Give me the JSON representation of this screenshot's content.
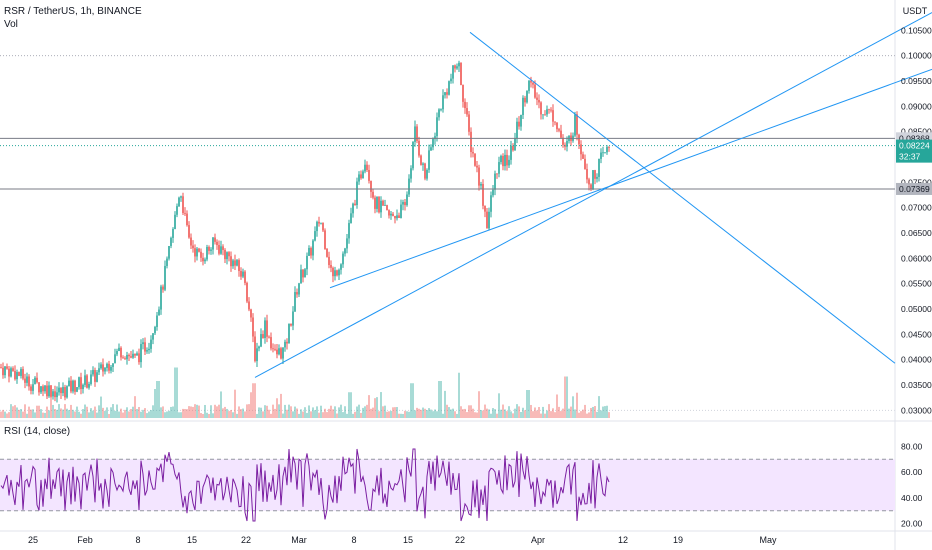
{
  "header": {
    "symbol": "RSR / TetherUS, 1h, BINANCE",
    "volume_label": "Vol"
  },
  "rsi": {
    "label": "RSI (14, close)",
    "levels": [
      "80.00",
      "60.00",
      "40.00",
      "20.00"
    ]
  },
  "price_axis": {
    "currency": "USDT",
    "ticks": [
      "0.10500",
      "0.10000",
      "0.09500",
      "0.09000",
      "0.08500",
      "0.07500",
      "0.07000",
      "0.06500",
      "0.06000",
      "0.05500",
      "0.05000",
      "0.04500",
      "0.04000",
      "0.03500",
      "0.03000"
    ],
    "badges": [
      {
        "value": "0.08368",
        "kind": "level",
        "color": "#d1d4dc",
        "text_color": "#131722"
      },
      {
        "value": "0.08224",
        "kind": "last",
        "color": "#26a69a",
        "text_color": "#ffffff"
      },
      {
        "value": "32:37",
        "kind": "countdown",
        "color": "#26a69a",
        "text_color": "#ffffff"
      },
      {
        "value": "0.07369",
        "kind": "level",
        "color": "#b2b5be",
        "text_color": "#131722"
      }
    ]
  },
  "time_axis": {
    "ticks": [
      "25",
      "Feb",
      "8",
      "15",
      "22",
      "Mar",
      "8",
      "15",
      "22",
      "Apr",
      "12",
      "19",
      "May"
    ]
  },
  "colors": {
    "up": "#26a69a",
    "down": "#ef5350",
    "trendline": "#2196f3",
    "rsi_line": "#7b1fa2",
    "rsi_band": "#f3e5ff"
  },
  "chart_data": {
    "type": "candlestick",
    "ylim": [
      0.0285,
      0.109
    ],
    "horizontal_levels": [
      0.08368,
      0.07369,
      0.1
    ],
    "rsi_ylim": [
      15,
      85
    ],
    "rsi_band": [
      30,
      70
    ],
    "price_path": [
      {
        "t": 0,
        "p": 0.0385
      },
      {
        "t": 15,
        "p": 0.0375
      },
      {
        "t": 30,
        "p": 0.0355
      },
      {
        "t": 45,
        "p": 0.0345
      },
      {
        "t": 60,
        "p": 0.0335
      },
      {
        "t": 75,
        "p": 0.035
      },
      {
        "t": 90,
        "p": 0.036
      },
      {
        "t": 105,
        "p": 0.0385
      },
      {
        "t": 120,
        "p": 0.042
      },
      {
        "t": 135,
        "p": 0.04
      },
      {
        "t": 150,
        "p": 0.044
      },
      {
        "t": 160,
        "p": 0.052
      },
      {
        "t": 170,
        "p": 0.062
      },
      {
        "t": 180,
        "p": 0.074
      },
      {
        "t": 188,
        "p": 0.064
      },
      {
        "t": 200,
        "p": 0.06
      },
      {
        "t": 215,
        "p": 0.063
      },
      {
        "t": 230,
        "p": 0.06
      },
      {
        "t": 245,
        "p": 0.056
      },
      {
        "t": 255,
        "p": 0.041
      },
      {
        "t": 265,
        "p": 0.047
      },
      {
        "t": 275,
        "p": 0.041
      },
      {
        "t": 285,
        "p": 0.042
      },
      {
        "t": 298,
        "p": 0.055
      },
      {
        "t": 310,
        "p": 0.061
      },
      {
        "t": 320,
        "p": 0.068
      },
      {
        "t": 333,
        "p": 0.056
      },
      {
        "t": 345,
        "p": 0.062
      },
      {
        "t": 355,
        "p": 0.072
      },
      {
        "t": 365,
        "p": 0.08
      },
      {
        "t": 375,
        "p": 0.071
      },
      {
        "t": 390,
        "p": 0.068
      },
      {
        "t": 405,
        "p": 0.07
      },
      {
        "t": 415,
        "p": 0.085
      },
      {
        "t": 425,
        "p": 0.076
      },
      {
        "t": 440,
        "p": 0.09
      },
      {
        "t": 448,
        "p": 0.094
      },
      {
        "t": 458,
        "p": 0.099
      },
      {
        "t": 470,
        "p": 0.083
      },
      {
        "t": 480,
        "p": 0.075
      },
      {
        "t": 487,
        "p": 0.067
      },
      {
        "t": 497,
        "p": 0.078
      },
      {
        "t": 510,
        "p": 0.08
      },
      {
        "t": 520,
        "p": 0.088
      },
      {
        "t": 528,
        "p": 0.095
      },
      {
        "t": 540,
        "p": 0.09
      },
      {
        "t": 555,
        "p": 0.088
      },
      {
        "t": 565,
        "p": 0.081
      },
      {
        "t": 575,
        "p": 0.087
      },
      {
        "t": 590,
        "p": 0.0745
      },
      {
        "t": 600,
        "p": 0.079
      },
      {
        "t": 610,
        "p": 0.0822
      }
    ],
    "volume_spikes": [
      {
        "t": 176,
        "v": 0.9
      },
      {
        "t": 158,
        "v": 0.6
      },
      {
        "t": 254,
        "v": 0.55
      },
      {
        "t": 412,
        "v": 0.55
      },
      {
        "t": 440,
        "v": 0.6
      },
      {
        "t": 459,
        "v": 0.45
      },
      {
        "t": 566,
        "v": 0.7
      },
      {
        "t": 528,
        "v": 0.4
      },
      {
        "t": 350,
        "v": 0.35
      }
    ],
    "trendlines": [
      {
        "from": {
          "t": 255,
          "p": 0.0365
        },
        "to": {
          "t": 932,
          "p": 0.1085
        }
      },
      {
        "from": {
          "t": 330,
          "p": 0.0542
        },
        "to": {
          "t": 932,
          "p": 0.0973
        }
      },
      {
        "from": {
          "t": 470,
          "p": 0.1046
        },
        "to": {
          "t": 895,
          "p": 0.0393
        }
      }
    ]
  }
}
